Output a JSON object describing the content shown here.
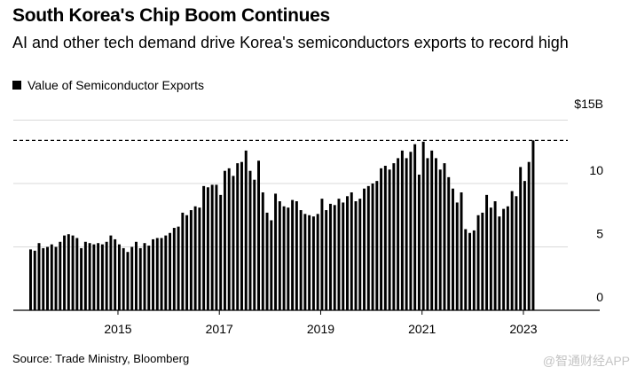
{
  "title": "South Korea's Chip Boom Continues",
  "subtitle": "AI and other tech demand drive Korea's semiconductors exports to record high",
  "legend_label": "Value of Semiconductor Exports",
  "source": "Source: Trade Ministry, Bloomberg",
  "watermark": "@智通财经APP",
  "colors": {
    "bar": "#000000",
    "grid": "#d9d9d9",
    "axis": "#000000",
    "reference_line": "#000000"
  },
  "chart_data": {
    "type": "bar",
    "title": "South Korea's Chip Boom Continues",
    "series_name": "Value of Semiconductor Exports",
    "unit": "$ billions",
    "x_start": 2013.25,
    "x_step": 0.08333,
    "ylim": [
      0,
      15
    ],
    "yticks": [
      {
        "value": 0,
        "label": "0"
      },
      {
        "value": 5,
        "label": "5"
      },
      {
        "value": 10,
        "label": "10"
      },
      {
        "value": 15,
        "label": "$15B"
      }
    ],
    "xticks": [
      {
        "value": 2015,
        "label": "2015"
      },
      {
        "value": 2017,
        "label": "2017"
      },
      {
        "value": 2019,
        "label": "2019"
      },
      {
        "value": 2021,
        "label": "2021"
      },
      {
        "value": 2023,
        "label": "2023"
      }
    ],
    "reference_line": 13.4,
    "values": [
      4.8,
      4.7,
      5.3,
      4.9,
      5.0,
      5.2,
      5.0,
      5.4,
      5.9,
      6.0,
      5.9,
      5.7,
      4.9,
      5.4,
      5.3,
      5.2,
      5.3,
      5.2,
      5.4,
      5.9,
      5.6,
      5.2,
      4.9,
      4.6,
      5.0,
      5.4,
      4.9,
      5.3,
      5.1,
      5.6,
      5.7,
      5.7,
      5.9,
      6.1,
      6.5,
      6.6,
      7.7,
      7.5,
      7.9,
      8.2,
      8.1,
      9.8,
      9.7,
      9.9,
      9.9,
      9.1,
      11.0,
      11.2,
      10.6,
      11.6,
      11.7,
      12.6,
      11.0,
      10.3,
      11.8,
      9.3,
      7.7,
      7.1,
      9.2,
      8.6,
      8.2,
      8.1,
      8.7,
      8.6,
      7.9,
      7.6,
      7.5,
      7.4,
      7.6,
      8.8,
      7.9,
      8.4,
      8.3,
      8.8,
      8.5,
      9.0,
      9.3,
      8.6,
      8.8,
      9.6,
      9.8,
      10.0,
      10.2,
      11.2,
      11.4,
      11.1,
      11.6,
      12.0,
      12.6,
      12.0,
      12.5,
      13.1,
      10.7,
      13.3,
      12.0,
      12.6,
      12.0,
      11.1,
      11.6,
      10.5,
      9.6,
      8.5,
      9.3,
      6.4,
      6.1,
      6.3,
      7.5,
      7.7,
      9.1,
      8.1,
      8.6,
      7.4,
      8.0,
      8.2,
      9.4,
      9.0,
      11.3,
      10.2,
      11.7,
      13.4
    ]
  }
}
